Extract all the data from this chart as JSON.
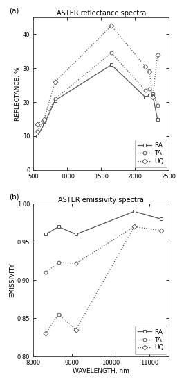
{
  "reflectance": {
    "title": "ASTER reflectance spectra",
    "xlabel": "",
    "ylabel": "REFLECTANCE, %",
    "xlim": [
      500,
      2500
    ],
    "ylim": [
      0,
      45
    ],
    "yticks": [
      0,
      10,
      20,
      30,
      40
    ],
    "xticks": [
      500,
      1000,
      1500,
      2000,
      2500
    ],
    "legend_loc": "lower right",
    "RA": {
      "x": [
        560,
        660,
        820,
        1650,
        2150,
        2210,
        2260,
        2330
      ],
      "y": [
        10.0,
        13.5,
        20.5,
        31.0,
        21.5,
        22.0,
        22.0,
        15.0
      ],
      "linestyle": "-",
      "marker": "s"
    },
    "TA": {
      "x": [
        560,
        660,
        820,
        1650,
        2150,
        2210,
        2260,
        2330
      ],
      "y": [
        11.5,
        14.5,
        21.0,
        34.5,
        23.5,
        24.0,
        22.5,
        19.0
      ],
      "linestyle": ":",
      "marker": "o"
    },
    "UQ": {
      "x": [
        560,
        660,
        820,
        1650,
        2150,
        2210,
        2260,
        2330
      ],
      "y": [
        13.5,
        15.0,
        26.0,
        42.5,
        30.5,
        29.0,
        21.5,
        34.0
      ],
      "linestyle": ":",
      "marker": "D"
    }
  },
  "emissivity": {
    "title": "ASTER emissivity spectra",
    "xlabel": "WAVELENGTH, nm",
    "ylabel": "EMISSIVITY",
    "xlim": [
      8000,
      11500
    ],
    "ylim": [
      0.8,
      1.0
    ],
    "yticks": [
      0.8,
      0.85,
      0.9,
      0.95,
      1.0
    ],
    "xticks": [
      8000,
      9000,
      10000,
      11000
    ],
    "legend_loc": "lower right",
    "RA": {
      "x": [
        8320,
        8650,
        9100,
        10600,
        11300
      ],
      "y": [
        0.96,
        0.97,
        0.96,
        0.99,
        0.98
      ],
      "linestyle": "-",
      "marker": "s"
    },
    "TA": {
      "x": [
        8320,
        8650,
        9100,
        10600,
        11300
      ],
      "y": [
        0.91,
        0.923,
        0.922,
        0.97,
        0.965
      ],
      "linestyle": ":",
      "marker": "o"
    },
    "UQ": {
      "x": [
        8320,
        8650,
        9100,
        10600,
        11300
      ],
      "y": [
        0.83,
        0.855,
        0.835,
        0.97,
        0.965
      ],
      "linestyle": ":",
      "marker": "D"
    }
  },
  "line_color": "#555555",
  "label_fontsize": 6.5,
  "tick_fontsize": 6,
  "title_fontsize": 7,
  "legend_fontsize": 6.5,
  "panel_label_fontsize": 7.5,
  "linewidth": 0.9,
  "markersize": 3.5,
  "markeredgewidth": 0.7,
  "bg_color": "#ffffff"
}
